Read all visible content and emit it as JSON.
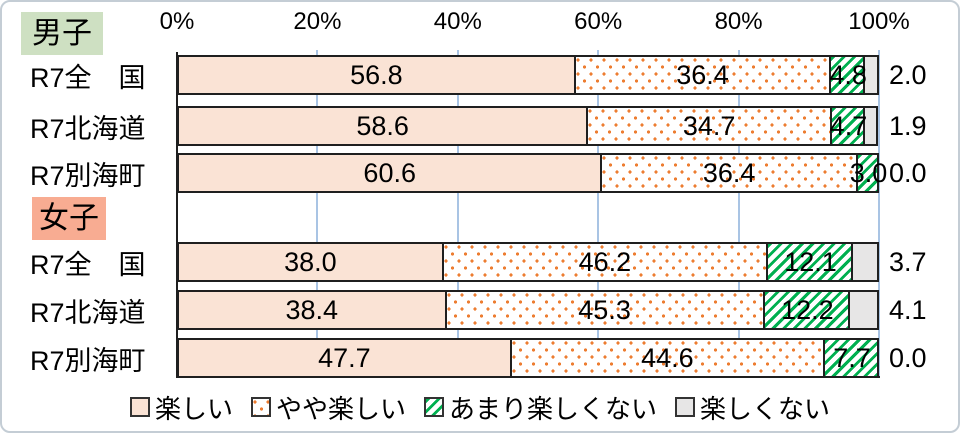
{
  "chart_data": {
    "type": "bar",
    "orientation": "horizontal-stacked",
    "title": "",
    "xlim": [
      0,
      100
    ],
    "grid": true,
    "legend_position": "bottom",
    "x_axis": {
      "position": "top",
      "ticks": [
        {
          "label": "0%",
          "value": 0
        },
        {
          "label": "20%",
          "value": 20
        },
        {
          "label": "40%",
          "value": 40
        },
        {
          "label": "60%",
          "value": 60
        },
        {
          "label": "80%",
          "value": 80
        },
        {
          "label": "100%",
          "value": 100
        }
      ]
    },
    "groups": [
      {
        "label": "男子",
        "label_bg": "#CEE0C2"
      },
      {
        "label": "女子",
        "label_bg": "#F8AC92"
      }
    ],
    "rows": [
      {
        "group": "男子",
        "category": "R7全　国",
        "values": [
          56.8,
          36.4,
          4.8,
          2.0
        ]
      },
      {
        "group": "男子",
        "category": "R7北海道",
        "values": [
          58.6,
          34.7,
          4.7,
          1.9
        ]
      },
      {
        "group": "男子",
        "category": "R7別海町",
        "values": [
          60.6,
          36.4,
          3.0,
          0.0
        ]
      },
      {
        "group": "女子",
        "category": "R7全　国",
        "values": [
          38.0,
          46.2,
          12.1,
          3.7
        ]
      },
      {
        "group": "女子",
        "category": "R7北海道",
        "values": [
          38.4,
          45.3,
          12.2,
          4.1
        ]
      },
      {
        "group": "女子",
        "category": "R7別海町",
        "values": [
          47.7,
          44.6,
          7.7,
          0.0
        ]
      }
    ],
    "legend": [
      {
        "label": "楽しい",
        "pattern": "solid-peach"
      },
      {
        "label": "やや楽しい",
        "pattern": "orange-dots"
      },
      {
        "label": "あまり楽しくない",
        "pattern": "green-hatch"
      },
      {
        "label": "楽しくない",
        "pattern": "solid-gray"
      }
    ],
    "colors": {
      "peach": "#FAE3D5",
      "dot_orange": "#ED7D31",
      "hatch_green": "#00B050",
      "gray": "#E7E6E6",
      "gridline": "#A9C4E4",
      "bar_border": "#1F1F1F",
      "frame_border": "#C4CDD5"
    }
  }
}
